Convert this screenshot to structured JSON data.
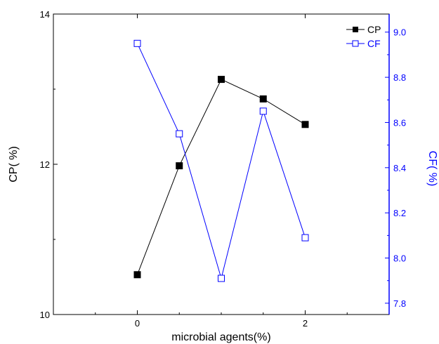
{
  "chart_data": {
    "type": "line",
    "xlabel": "microbial agents(%)",
    "xlim": [
      -1,
      3
    ],
    "x_ticks": [
      0,
      2
    ],
    "x_tick_labels": [
      "0",
      "2"
    ],
    "x": [
      0,
      0.5,
      1,
      1.5,
      2
    ],
    "left_axis": {
      "label": "CP(  %)",
      "ylim": [
        10,
        14
      ],
      "ticks": [
        10,
        12,
        14
      ],
      "tick_labels": [
        "10",
        "12",
        "14"
      ],
      "color": "#000000"
    },
    "right_axis": {
      "label": "CF(  %)",
      "ylim": [
        7.75,
        9.08
      ],
      "ticks": [
        7.8,
        8.0,
        8.2,
        8.4,
        8.6,
        8.8,
        9.0
      ],
      "tick_labels": [
        "7.8",
        "8.0",
        "8.2",
        "8.4",
        "8.6",
        "8.8",
        "9.0"
      ],
      "color": "#0000ff"
    },
    "series": [
      {
        "name": "CP",
        "axis": "left",
        "marker": "filled-square",
        "color": "#000000",
        "values": [
          10.53,
          11.98,
          13.13,
          12.87,
          12.53
        ]
      },
      {
        "name": "CF",
        "axis": "right",
        "marker": "open-square",
        "color": "#0000ff",
        "values": [
          8.95,
          8.55,
          7.91,
          8.65,
          8.09
        ]
      }
    ],
    "legend": {
      "position": "top-right",
      "entries": [
        "CP",
        "CF"
      ]
    },
    "grid": false
  }
}
